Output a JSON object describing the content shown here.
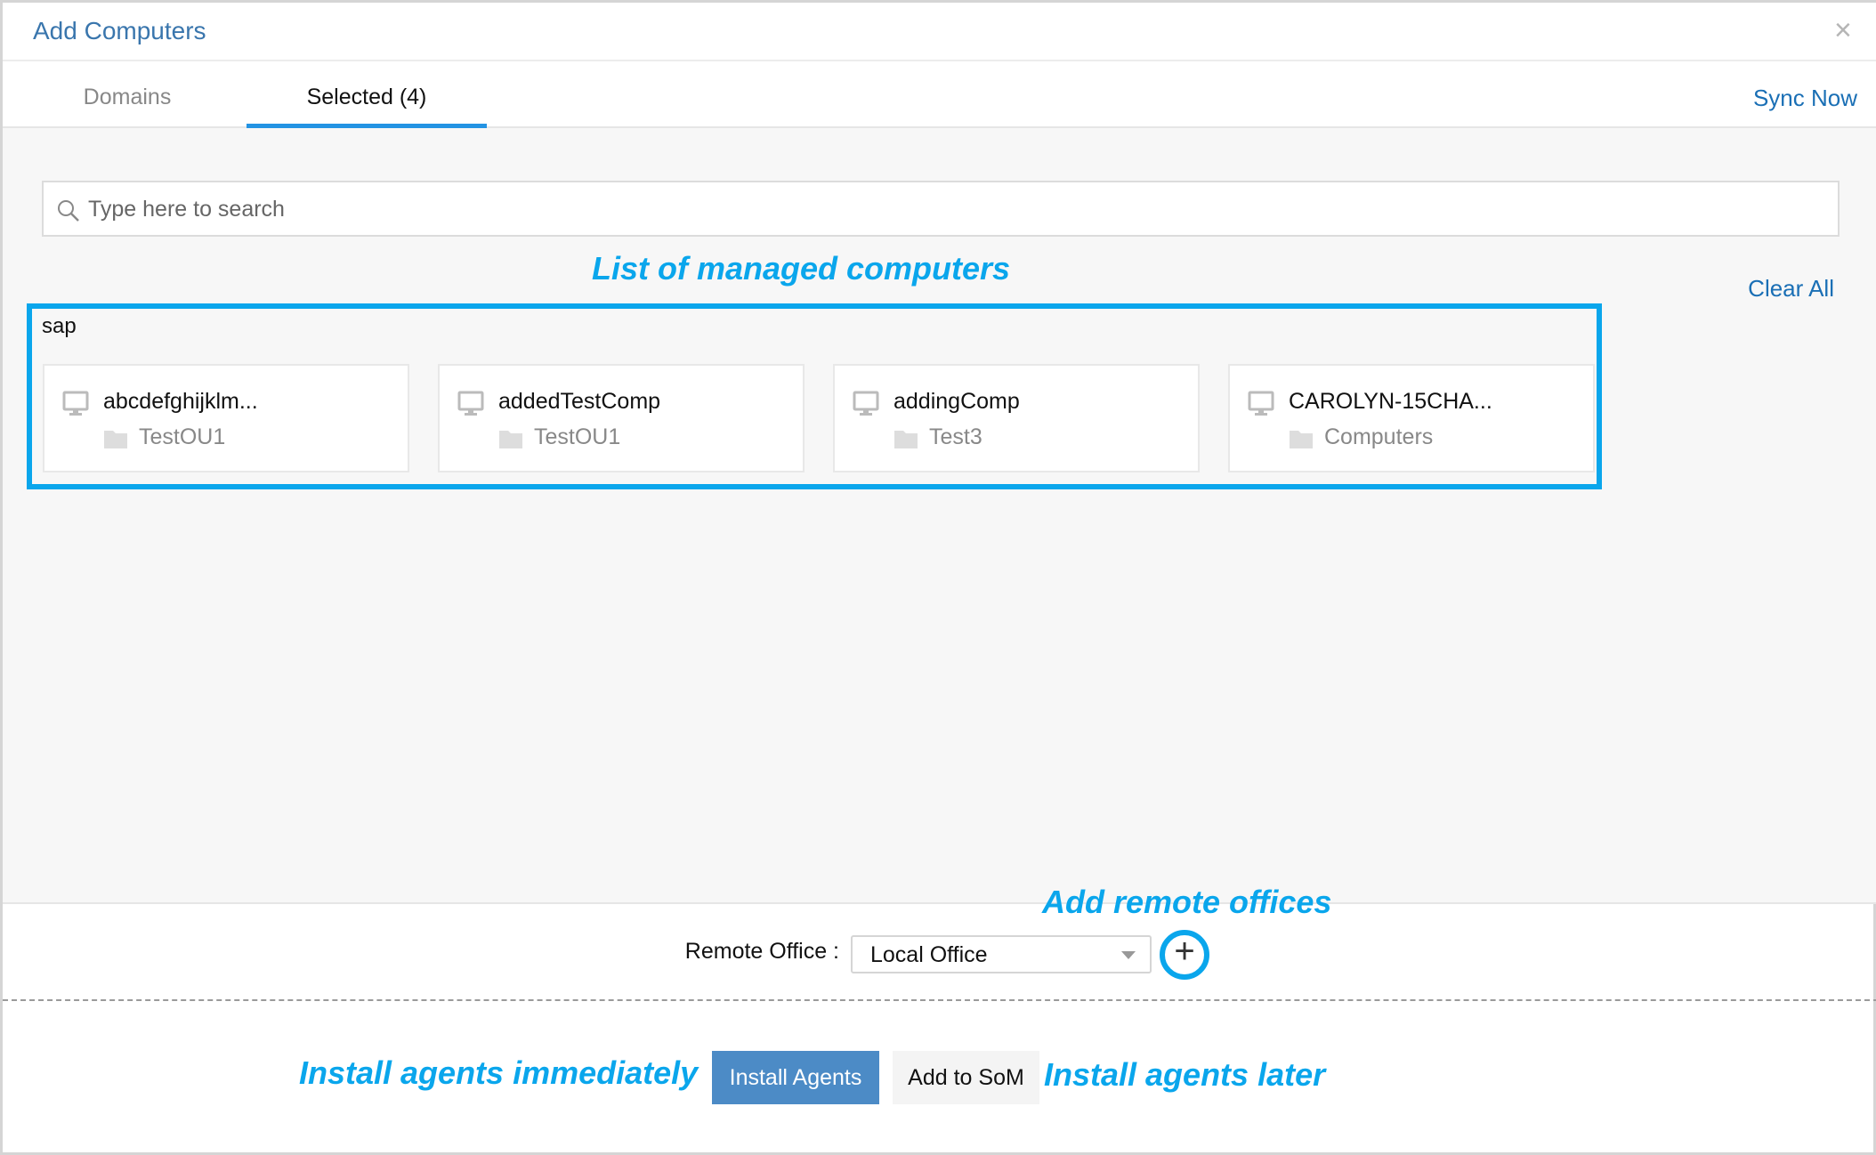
{
  "dialog": {
    "title": "Add Computers",
    "close_icon": "×"
  },
  "tabs": [
    {
      "label": "Domains",
      "active": false
    },
    {
      "label": "Selected (4)",
      "active": true
    }
  ],
  "sync_now": "Sync Now",
  "search": {
    "placeholder": "Type here to search",
    "value": ""
  },
  "clear_all": "Clear All",
  "group": {
    "name": "sap",
    "computers": [
      {
        "name": "abcdefghijklm...",
        "ou": "TestOU1"
      },
      {
        "name": "addedTestComp",
        "ou": "TestOU1"
      },
      {
        "name": "addingComp",
        "ou": "Test3"
      },
      {
        "name": "CAROLYN-15CHA...",
        "ou": "Computers"
      }
    ]
  },
  "footer": {
    "remote_office_label": "Remote Office :",
    "remote_office_value": "Local Office",
    "add_icon": "+",
    "install_agents": "Install Agents",
    "add_to_som": "Add to SoM"
  },
  "annotations": {
    "list": "List of managed computers",
    "remote": "Add remote offices",
    "now": "Install agents immediately",
    "later": "Install agents later"
  },
  "colors": {
    "accent": "#2393e3",
    "annotation": "#0aa6ec",
    "primary_button": "#4c8bc6",
    "link": "#1a6fb5"
  }
}
